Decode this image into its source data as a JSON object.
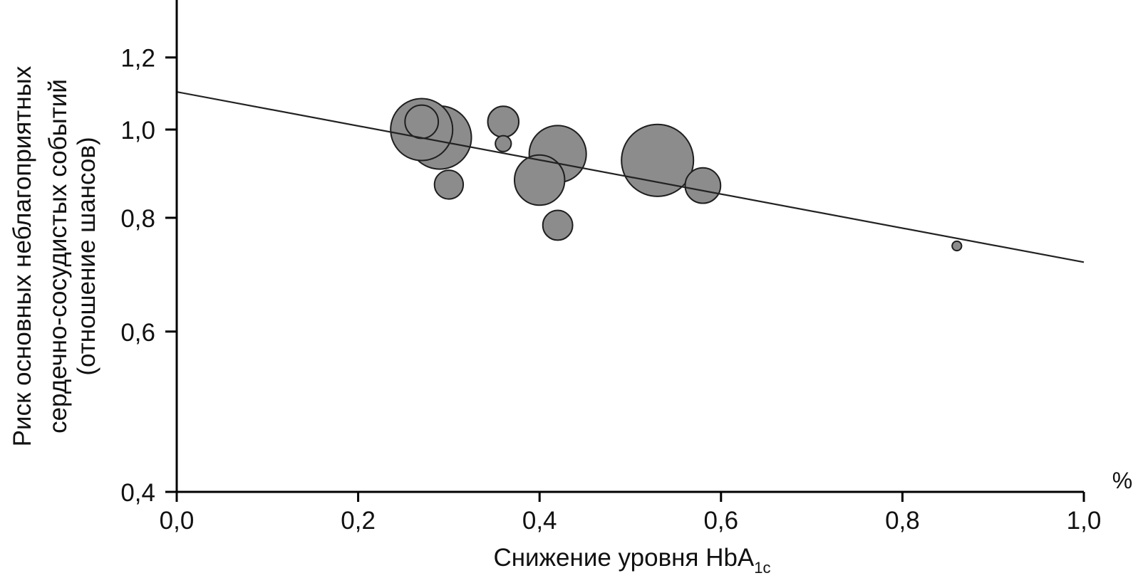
{
  "chart_data": {
    "type": "scatter",
    "xlabel": {
      "main": "Снижение уровня HbA",
      "sub": "1c"
    },
    "x_unit": "%",
    "ylabel_lines": [
      "Риск основных неблагоприятных",
      "сердечно-сосудистых событий",
      "(отношение шансов)"
    ],
    "xlim": [
      0.0,
      1.0
    ],
    "ylim": [
      0.4,
      1.3
    ],
    "y_scale": "log",
    "x_ticks": [
      "0,0",
      "0,2",
      "0,4",
      "0,6",
      "0,8",
      "1,0"
    ],
    "y_ticks": [
      "0,4",
      "0,6",
      "0,8",
      "1,0",
      "1,2"
    ],
    "grid": false,
    "bubble_color": "#8c8c8c",
    "points": [
      {
        "x": 0.27,
        "y": 1.0,
        "size": 2.6
      },
      {
        "x": 0.29,
        "y": 0.98,
        "size": 2.7
      },
      {
        "x": 0.27,
        "y": 1.02,
        "size": 0.75
      },
      {
        "x": 0.3,
        "y": 0.87,
        "size": 0.56
      },
      {
        "x": 0.36,
        "y": 1.02,
        "size": 0.65
      },
      {
        "x": 0.36,
        "y": 0.965,
        "size": 0.17
      },
      {
        "x": 0.4,
        "y": 0.88,
        "size": 1.7
      },
      {
        "x": 0.42,
        "y": 0.94,
        "size": 2.2
      },
      {
        "x": 0.42,
        "y": 0.785,
        "size": 0.6
      },
      {
        "x": 0.53,
        "y": 0.925,
        "size": 3.5
      },
      {
        "x": 0.58,
        "y": 0.868,
        "size": 0.85
      },
      {
        "x": 0.86,
        "y": 0.745,
        "size": 0.06
      }
    ],
    "regression_line": {
      "x": [
        0.0,
        1.0
      ],
      "y": [
        1.1,
        0.715
      ]
    }
  }
}
